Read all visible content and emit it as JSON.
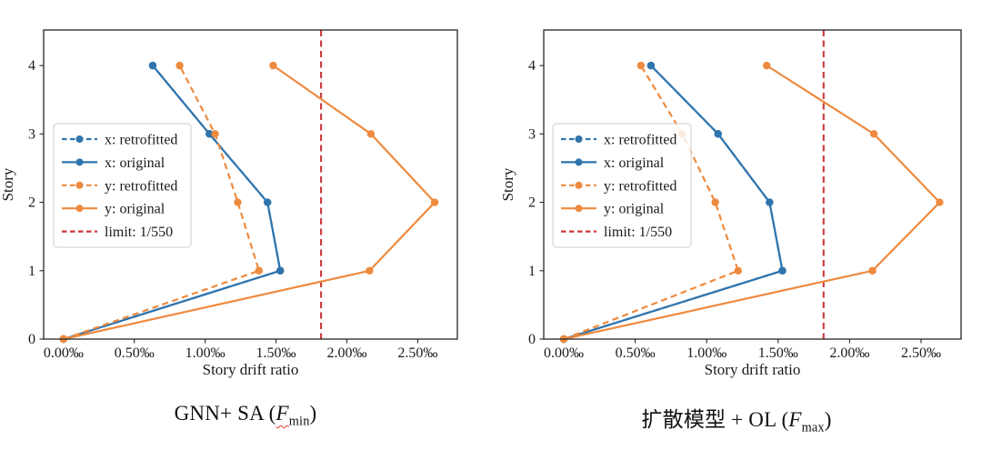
{
  "figure": {
    "background": "#ffffff"
  },
  "colors": {
    "blue": "#2f74ad",
    "orange": "#ee8a3e",
    "red": "#c9393b",
    "axis": "#262626",
    "legend_border": "#cccccc"
  },
  "chart_data": [
    {
      "type": "line",
      "title": "GNN+ SA (F_min)",
      "xlabel": "Story drift ratio",
      "ylabel": "Story",
      "x_ticks": [
        0,
        0.5,
        1.0,
        1.5,
        2.0,
        2.5
      ],
      "x_tick_labels": [
        "0.00‰",
        "0.50‰",
        "1.00‰",
        "1.50‰",
        "2.00‰",
        "2.50‰"
      ],
      "y_ticks": [
        0,
        1,
        2,
        3,
        4
      ],
      "y_tick_labels": [
        "0",
        "1",
        "2",
        "3",
        "4"
      ],
      "xlim": [
        -0.14,
        2.78
      ],
      "ylim": [
        0,
        4.52
      ],
      "stories": [
        0,
        1,
        2,
        3,
        4
      ],
      "series": [
        {
          "name": "x: retrofitted",
          "color": "blue",
          "dash": true,
          "marker": true,
          "values": [
            0,
            1.53,
            1.44,
            1.03,
            0.63
          ]
        },
        {
          "name": "x: original",
          "color": "blue",
          "dash": false,
          "marker": true,
          "values": [
            0,
            1.53,
            1.44,
            1.03,
            0.63
          ]
        },
        {
          "name": "y: retrofitted",
          "color": "orange",
          "dash": true,
          "marker": true,
          "values": [
            0,
            1.38,
            1.23,
            1.07,
            0.82
          ]
        },
        {
          "name": "y: original",
          "color": "orange",
          "dash": false,
          "marker": true,
          "values": [
            0,
            2.16,
            2.62,
            2.17,
            1.48
          ]
        }
      ],
      "limit": {
        "name": "limit: 1/550",
        "value": 1.818,
        "color": "red"
      },
      "legend_position": "center left",
      "caption": {
        "prefix": "GNN+ SA (",
        "variable": "F",
        "subscript": "min",
        "suffix": ")",
        "spellcheck_underline": true
      }
    },
    {
      "type": "line",
      "title": "扩散模型 + OL (F_max)",
      "xlabel": "Story drift ratio",
      "ylabel": "Story",
      "x_ticks": [
        0,
        0.5,
        1.0,
        1.5,
        2.0,
        2.5
      ],
      "x_tick_labels": [
        "0.00‰",
        "0.50‰",
        "1.00‰",
        "1.50‰",
        "2.00‰",
        "2.50‰"
      ],
      "y_ticks": [
        0,
        1,
        2,
        3,
        4
      ],
      "y_tick_labels": [
        "0",
        "1",
        "2",
        "3",
        "4"
      ],
      "xlim": [
        -0.14,
        2.78
      ],
      "ylim": [
        0,
        4.52
      ],
      "stories": [
        0,
        1,
        2,
        3,
        4
      ],
      "series": [
        {
          "name": "x: retrofitted",
          "color": "blue",
          "dash": true,
          "marker": true,
          "values": [
            0,
            1.53,
            1.44,
            1.08,
            0.61
          ]
        },
        {
          "name": "x: original",
          "color": "blue",
          "dash": false,
          "marker": true,
          "values": [
            0,
            1.53,
            1.44,
            1.08,
            0.61
          ]
        },
        {
          "name": "y: retrofitted",
          "color": "orange",
          "dash": true,
          "marker": true,
          "values": [
            0,
            1.22,
            1.06,
            0.83,
            0.54
          ]
        },
        {
          "name": "y: original",
          "color": "orange",
          "dash": false,
          "marker": true,
          "values": [
            0,
            2.16,
            2.63,
            2.17,
            1.42
          ]
        }
      ],
      "limit": {
        "name": "limit: 1/550",
        "value": 1.818,
        "color": "red"
      },
      "legend_position": "center left",
      "caption": {
        "prefix": "扩散模型 + OL (",
        "variable": "F",
        "subscript": "max",
        "suffix": ")",
        "spellcheck_underline": false
      }
    }
  ]
}
